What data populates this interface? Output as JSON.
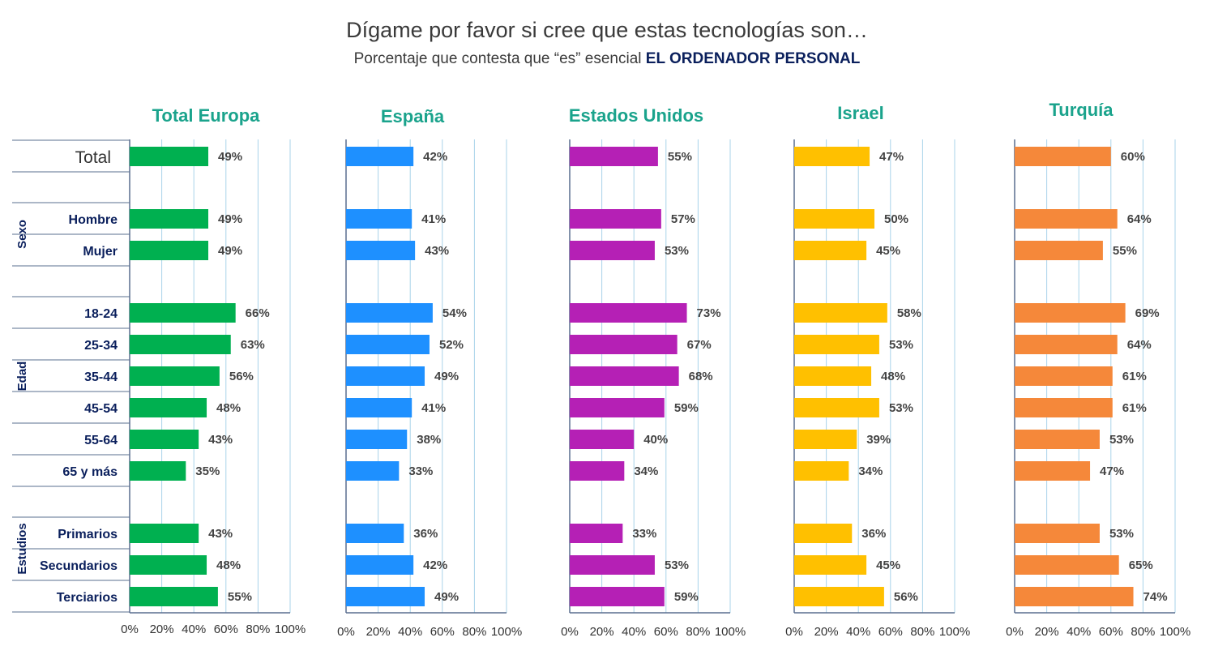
{
  "title": "Dígame por favor si cree que estas tecnologías son…",
  "subtitle": {
    "prefix": "Porcentaje que contesta que “es” esencial",
    "emphasis": "EL ORDENADOR PERSONAL"
  },
  "chart_data": {
    "type": "bar",
    "orientation": "horizontal",
    "xlim": [
      0,
      100
    ],
    "x_ticks": [
      "0%",
      "20%",
      "40%",
      "60%",
      "80%",
      "100%"
    ],
    "grid": true,
    "categories": [
      "Total",
      "Hombre",
      "Mujer",
      "18-24",
      "25-34",
      "35-44",
      "45-54",
      "55-64",
      "65 y más",
      "Primarios",
      "Secundarios",
      "Terciarios"
    ],
    "groups": [
      {
        "name": "Sexo",
        "categories": [
          "Hombre",
          "Mujer"
        ]
      },
      {
        "name": "Edad",
        "categories": [
          "18-24",
          "25-34",
          "35-44",
          "45-54",
          "55-64",
          "65 y más"
        ]
      },
      {
        "name": "Estudios",
        "categories": [
          "Primarios",
          "Secundarios",
          "Terciarios"
        ]
      }
    ],
    "value_suffix": "%",
    "series": [
      {
        "name": "Total Europa",
        "color": "#00b050",
        "title_color": "#1aa38c",
        "values": [
          49,
          49,
          49,
          66,
          63,
          56,
          48,
          43,
          35,
          43,
          48,
          55
        ]
      },
      {
        "name": "España",
        "color": "#1e90ff",
        "title_color": "#1aa38c",
        "values": [
          42,
          41,
          43,
          54,
          52,
          49,
          41,
          38,
          33,
          36,
          42,
          49
        ]
      },
      {
        "name": "Estados Unidos",
        "color": "#b520b5",
        "title_color": "#1aa38c",
        "values": [
          55,
          57,
          53,
          73,
          67,
          68,
          59,
          40,
          34,
          33,
          53,
          59
        ]
      },
      {
        "name": "Israel",
        "color": "#ffc000",
        "title_color": "#1aa38c",
        "values": [
          47,
          50,
          45,
          58,
          53,
          48,
          53,
          39,
          34,
          36,
          45,
          56
        ]
      },
      {
        "name": "Turquía",
        "color": "#f5883a",
        "title_color": "#1aa38c",
        "values": [
          60,
          64,
          55,
          69,
          64,
          61,
          61,
          53,
          47,
          53,
          65,
          74
        ]
      }
    ]
  },
  "colors": {
    "row_label": "#0a1f5c",
    "grid": "#a9d3ea",
    "axis": "#5a6f8f"
  }
}
